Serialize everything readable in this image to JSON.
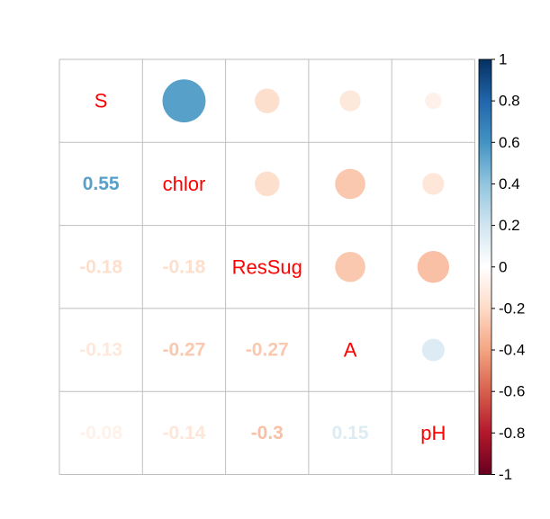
{
  "chart_data": {
    "type": "heatmap",
    "title": "",
    "variables": [
      "S",
      "chlor",
      "ResSug",
      "A",
      "pH"
    ],
    "matrix": [
      [
        1,
        0.55,
        -0.18,
        -0.13,
        -0.08
      ],
      [
        0.55,
        1,
        -0.18,
        -0.27,
        -0.14
      ],
      [
        -0.18,
        -0.18,
        1,
        -0.27,
        -0.3
      ],
      [
        -0.13,
        -0.27,
        -0.27,
        1,
        0.15
      ],
      [
        -0.08,
        -0.14,
        -0.3,
        0.15,
        1
      ]
    ],
    "value_labels": [
      [
        "",
        "",
        "",
        "",
        ""
      ],
      [
        "0.55",
        "",
        "",
        "",
        ""
      ],
      [
        "-0.18",
        "-0.18",
        "",
        "",
        ""
      ],
      [
        "-0.13",
        "-0.27",
        "-0.27",
        "",
        ""
      ],
      [
        "-0.08",
        "-0.14",
        "-0.3",
        "0.15",
        ""
      ]
    ],
    "upper_method": "circle",
    "lower_method": "number",
    "diagonal_label_color": "#ff0000",
    "grid": true,
    "grid_color": "#bebebe",
    "colorbar": {
      "ticks": [
        "1",
        "0.8",
        "0.6",
        "0.4",
        "0.2",
        "0",
        "-0.2",
        "-0.4",
        "-0.6",
        "-0.8",
        "-1"
      ],
      "range": [
        -1,
        1
      ],
      "palette": [
        "#67001F",
        "#B2182B",
        "#D6604D",
        "#F4A582",
        "#FDDBC7",
        "#FFFFFF",
        "#D1E5F0",
        "#92C5DE",
        "#4393C3",
        "#2166AC",
        "#053061"
      ]
    }
  }
}
